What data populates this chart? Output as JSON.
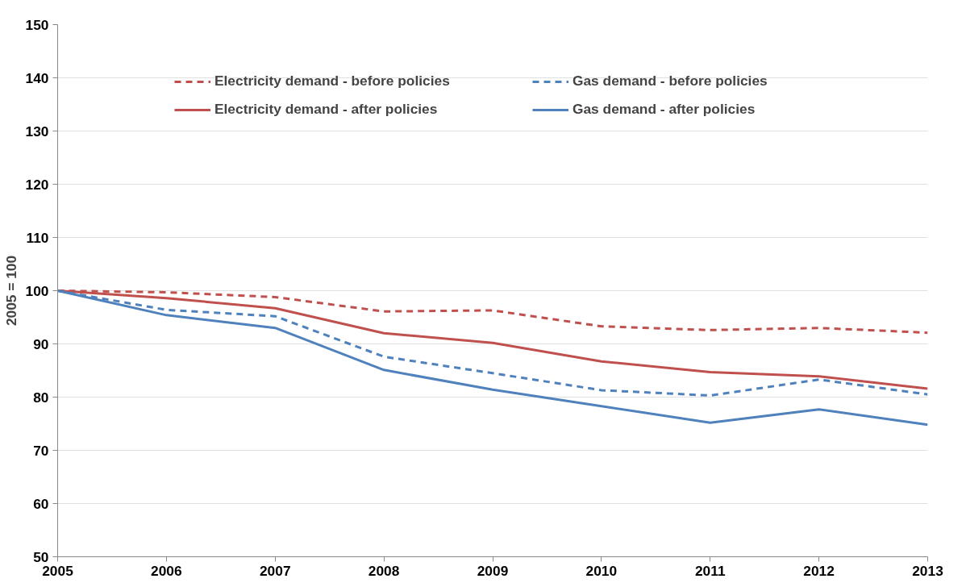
{
  "chart_data": {
    "type": "line",
    "ylabel": "2005 = 100",
    "x": [
      2005,
      2006,
      2007,
      2008,
      2009,
      2010,
      2011,
      2012,
      2013
    ],
    "xlim": [
      2005,
      2013
    ],
    "xticks": [
      2005,
      2006,
      2007,
      2008,
      2009,
      2010,
      2011,
      2012,
      2013
    ],
    "ylim": [
      50,
      150
    ],
    "yticks": [
      50,
      60,
      70,
      80,
      90,
      100,
      110,
      120,
      130,
      140,
      150
    ],
    "grid": "y",
    "legend": "top right",
    "marker": "none",
    "series": [
      {
        "name": "Electricity demand - before policies",
        "color": "#c0504d",
        "line_style": "dashed",
        "values": [
          100,
          99.7,
          98.8,
          96.1,
          96.3,
          93.3,
          92.6,
          93.0,
          92.1
        ]
      },
      {
        "name": "Electricity demand - after policies",
        "color": "#c0504d",
        "line_style": "solid",
        "values": [
          100,
          98.6,
          96.7,
          92.0,
          90.2,
          86.7,
          84.7,
          83.9,
          81.6
        ]
      },
      {
        "name": "Gas demand - before policies",
        "color": "#4f81bd",
        "line_style": "dashed",
        "values": [
          100,
          96.4,
          95.2,
          87.6,
          84.5,
          81.3,
          80.3,
          83.3,
          80.5
        ]
      },
      {
        "name": "Gas demand - after policies",
        "color": "#4f81bd",
        "line_style": "solid",
        "values": [
          100,
          95.4,
          93.0,
          85.1,
          81.4,
          78.3,
          75.2,
          77.7,
          74.8
        ]
      }
    ]
  }
}
